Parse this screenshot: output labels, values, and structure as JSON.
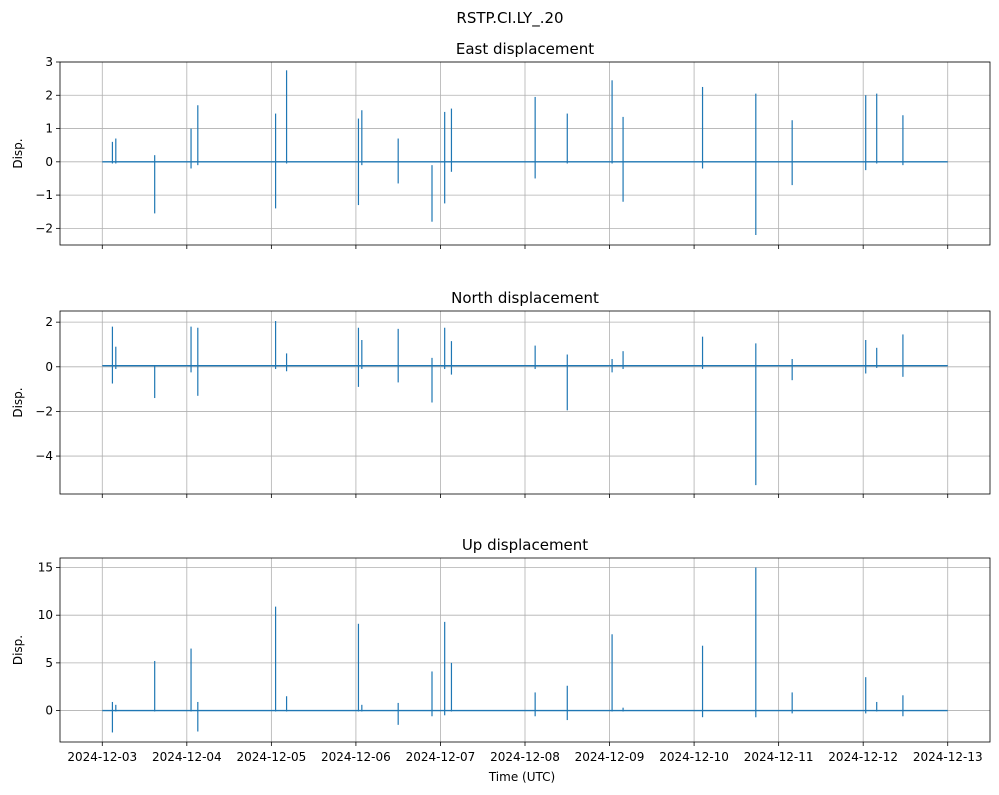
{
  "chart_data": {
    "type": "line",
    "suptitle": "RSTP.CI.LY_.20",
    "x_start": "2024-12-03",
    "x_end": "2024-12-13",
    "x_ticks": [
      "2024-12-03",
      "2024-12-04",
      "2024-12-05",
      "2024-12-06",
      "2024-12-07",
      "2024-12-08",
      "2024-12-09",
      "2024-12-10",
      "2024-12-11",
      "2024-12-12",
      "2024-12-13"
    ],
    "xlabel": "Time (UTC)",
    "line_color": "#1f77b4",
    "grid": true,
    "panels": [
      {
        "title": "East displacement",
        "ylabel": "Disp.",
        "ylim": [
          -2.5,
          3
        ],
        "y_ticks": [
          -2,
          -1,
          0,
          1,
          2,
          3
        ],
        "y_tick_labels": [
          "−2",
          "−1",
          "0",
          "1",
          "2",
          "3"
        ],
        "baseline": 0,
        "spikes": [
          {
            "day": 0.12,
            "min": -0.05,
            "max": 0.6
          },
          {
            "day": 0.16,
            "min": -0.05,
            "max": 0.7
          },
          {
            "day": 0.62,
            "min": -1.55,
            "max": 0.2
          },
          {
            "day": 1.05,
            "min": -0.2,
            "max": 1.0
          },
          {
            "day": 1.13,
            "min": -0.1,
            "max": 1.7
          },
          {
            "day": 2.05,
            "min": -1.4,
            "max": 1.45
          },
          {
            "day": 2.18,
            "min": -0.05,
            "max": 2.75
          },
          {
            "day": 3.03,
            "min": -1.3,
            "max": 1.3
          },
          {
            "day": 3.07,
            "min": -0.1,
            "max": 1.55
          },
          {
            "day": 3.5,
            "min": -0.65,
            "max": 0.7
          },
          {
            "day": 3.9,
            "min": -1.8,
            "max": -0.1
          },
          {
            "day": 4.05,
            "min": -1.25,
            "max": 1.5
          },
          {
            "day": 4.13,
            "min": -0.3,
            "max": 1.6
          },
          {
            "day": 5.12,
            "min": -0.5,
            "max": 1.95
          },
          {
            "day": 5.5,
            "min": -0.05,
            "max": 1.45
          },
          {
            "day": 6.03,
            "min": -0.05,
            "max": 2.45
          },
          {
            "day": 6.16,
            "min": -1.2,
            "max": 1.35
          },
          {
            "day": 7.1,
            "min": -0.2,
            "max": 2.25
          },
          {
            "day": 7.73,
            "min": -2.2,
            "max": 2.05
          },
          {
            "day": 8.16,
            "min": -0.7,
            "max": 1.25
          },
          {
            "day": 9.03,
            "min": -0.25,
            "max": 2.0
          },
          {
            "day": 9.16,
            "min": -0.05,
            "max": 2.05
          },
          {
            "day": 9.47,
            "min": -0.1,
            "max": 1.4
          }
        ]
      },
      {
        "title": "North displacement",
        "ylabel": "Disp.",
        "ylim": [
          -5.7,
          2.5
        ],
        "y_ticks": [
          -4,
          -2,
          0,
          2
        ],
        "y_tick_labels": [
          "−4",
          "−2",
          "0",
          "2"
        ],
        "baseline": 0.05,
        "spikes": [
          {
            "day": 0.12,
            "min": -0.75,
            "max": 1.8
          },
          {
            "day": 0.16,
            "min": -0.1,
            "max": 0.9
          },
          {
            "day": 0.62,
            "min": -1.4,
            "max": 0.05
          },
          {
            "day": 1.05,
            "min": -0.25,
            "max": 1.8
          },
          {
            "day": 1.13,
            "min": -1.3,
            "max": 1.75
          },
          {
            "day": 2.05,
            "min": -0.1,
            "max": 2.05
          },
          {
            "day": 2.18,
            "min": -0.2,
            "max": 0.6
          },
          {
            "day": 3.03,
            "min": -0.9,
            "max": 1.75
          },
          {
            "day": 3.07,
            "min": -0.1,
            "max": 1.2
          },
          {
            "day": 3.5,
            "min": -0.7,
            "max": 1.7
          },
          {
            "day": 3.9,
            "min": -1.6,
            "max": 0.4
          },
          {
            "day": 4.05,
            "min": -0.1,
            "max": 1.75
          },
          {
            "day": 4.13,
            "min": -0.35,
            "max": 1.15
          },
          {
            "day": 5.12,
            "min": -0.1,
            "max": 0.95
          },
          {
            "day": 5.5,
            "min": -1.95,
            "max": 0.55
          },
          {
            "day": 6.03,
            "min": -0.25,
            "max": 0.35
          },
          {
            "day": 6.16,
            "min": -0.1,
            "max": 0.7
          },
          {
            "day": 7.1,
            "min": -0.1,
            "max": 1.35
          },
          {
            "day": 7.73,
            "min": -5.3,
            "max": 1.05
          },
          {
            "day": 8.16,
            "min": -0.6,
            "max": 0.35
          },
          {
            "day": 9.03,
            "min": -0.3,
            "max": 1.2
          },
          {
            "day": 9.16,
            "min": -0.05,
            "max": 0.85
          },
          {
            "day": 9.47,
            "min": -0.45,
            "max": 1.45
          }
        ]
      },
      {
        "title": "Up displacement",
        "ylabel": "Disp.",
        "ylim": [
          -3.3,
          16
        ],
        "y_ticks": [
          0,
          5,
          10,
          15
        ],
        "y_tick_labels": [
          "0",
          "5",
          "10",
          "15"
        ],
        "baseline": 0,
        "spikes": [
          {
            "day": 0.12,
            "min": -2.3,
            "max": 0.9
          },
          {
            "day": 0.16,
            "min": -0.1,
            "max": 0.6
          },
          {
            "day": 0.62,
            "min": -0.1,
            "max": 5.2
          },
          {
            "day": 1.05,
            "min": -0.1,
            "max": 6.5
          },
          {
            "day": 1.13,
            "min": -2.2,
            "max": 0.9
          },
          {
            "day": 2.05,
            "min": -0.1,
            "max": 10.9
          },
          {
            "day": 2.18,
            "min": -0.1,
            "max": 1.5
          },
          {
            "day": 3.03,
            "min": -0.1,
            "max": 9.1
          },
          {
            "day": 3.07,
            "min": -0.1,
            "max": 0.6
          },
          {
            "day": 3.5,
            "min": -1.5,
            "max": 0.8
          },
          {
            "day": 3.9,
            "min": -0.6,
            "max": 4.1
          },
          {
            "day": 4.05,
            "min": -0.5,
            "max": 9.3
          },
          {
            "day": 4.13,
            "min": -0.1,
            "max": 5.0
          },
          {
            "day": 5.12,
            "min": -0.6,
            "max": 1.9
          },
          {
            "day": 5.5,
            "min": -1.0,
            "max": 2.6
          },
          {
            "day": 6.03,
            "min": -0.1,
            "max": 8.0
          },
          {
            "day": 6.16,
            "min": -0.1,
            "max": 0.3
          },
          {
            "day": 7.1,
            "min": -0.7,
            "max": 6.8
          },
          {
            "day": 7.73,
            "min": -0.7,
            "max": 15.0
          },
          {
            "day": 8.16,
            "min": -0.3,
            "max": 1.9
          },
          {
            "day": 9.03,
            "min": -0.3,
            "max": 3.5
          },
          {
            "day": 9.16,
            "min": -0.1,
            "max": 0.9
          },
          {
            "day": 9.47,
            "min": -0.6,
            "max": 1.6
          }
        ]
      }
    ]
  }
}
